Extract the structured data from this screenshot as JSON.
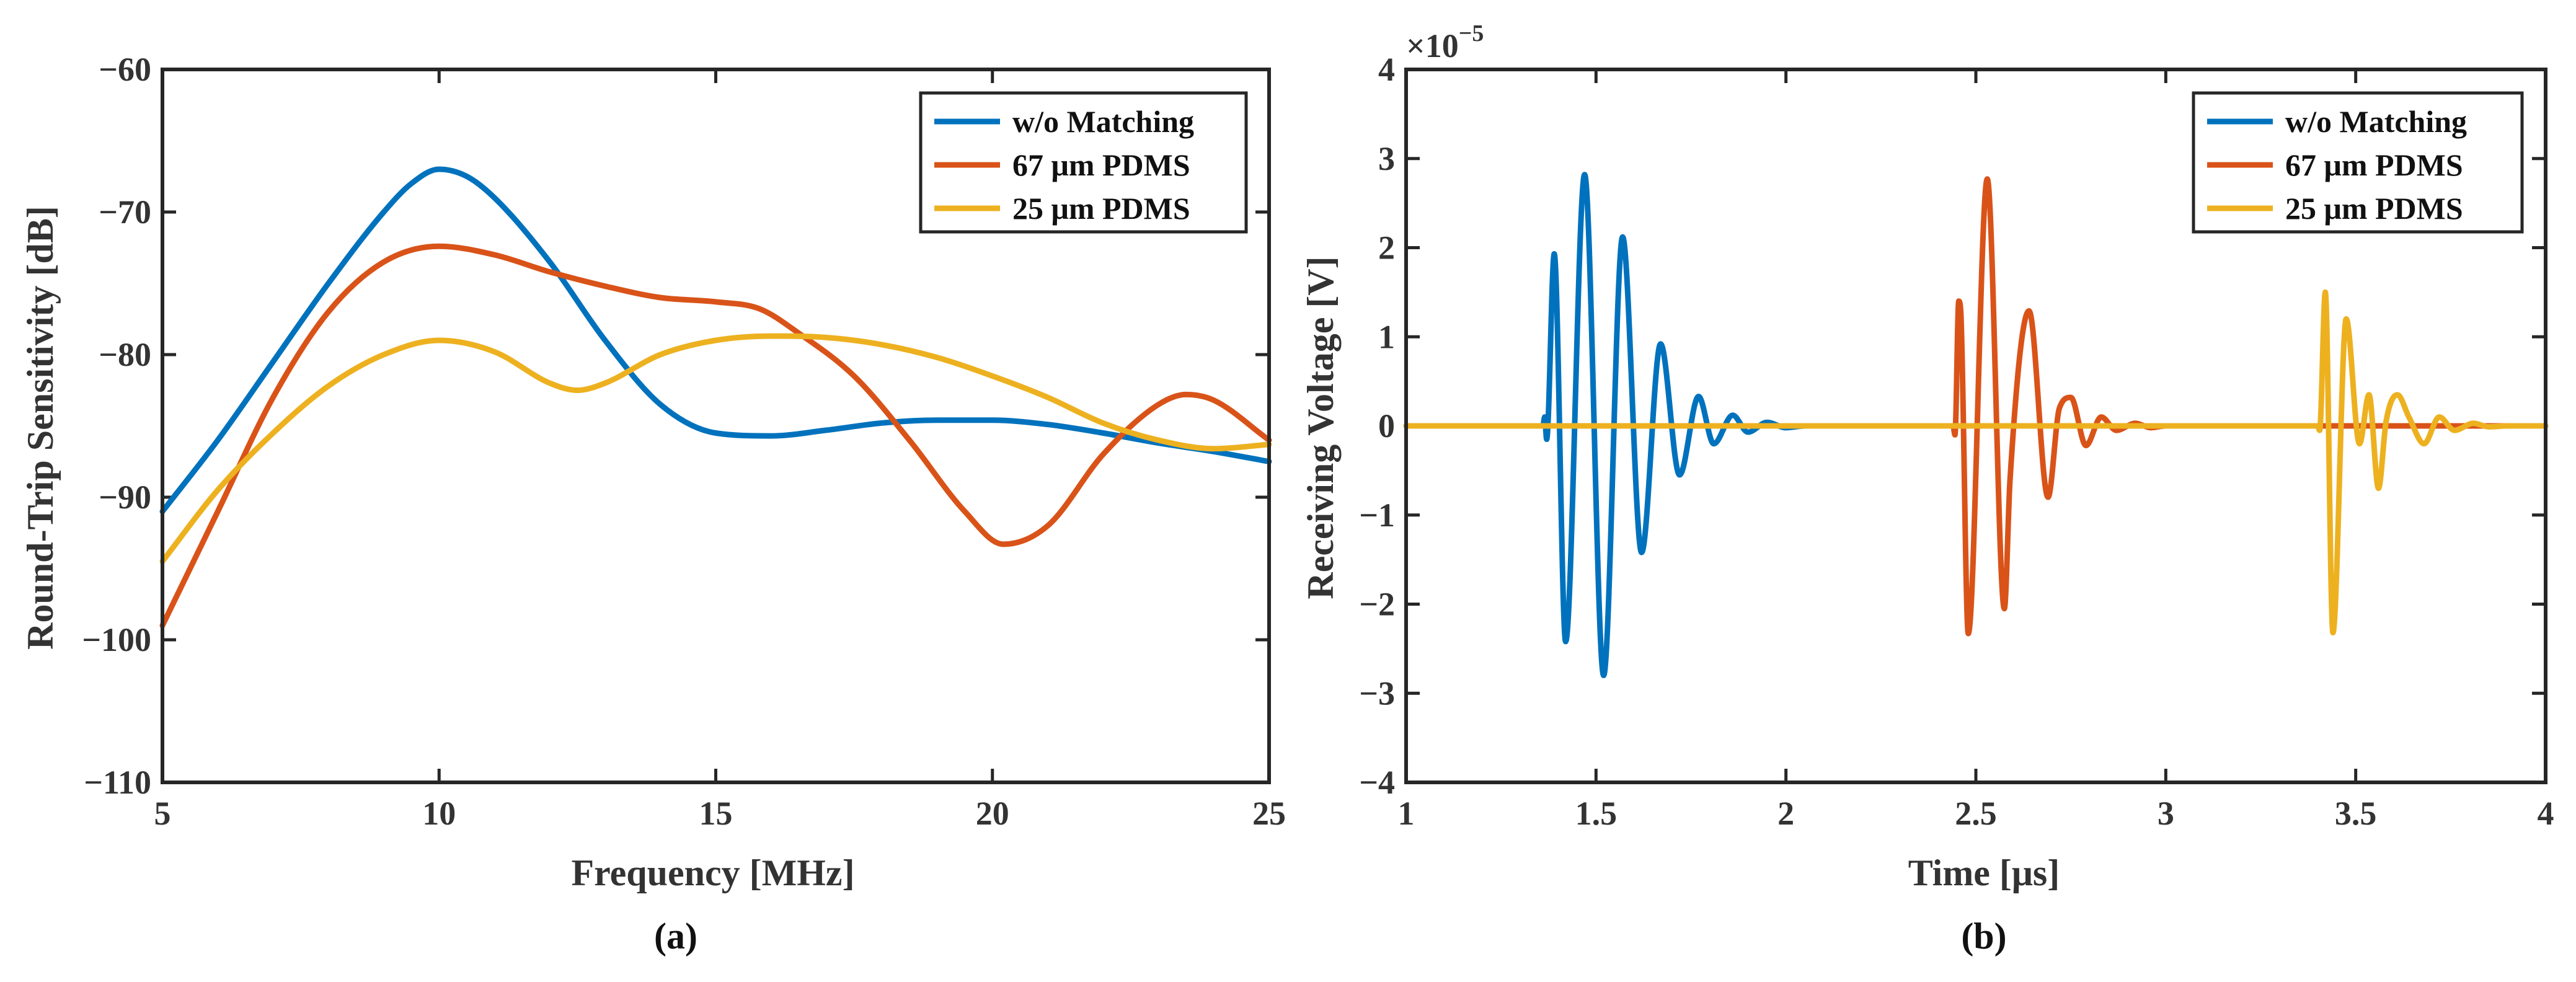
{
  "chart_data": [
    {
      "type": "line",
      "panel_caption": "(a)",
      "xlabel": "Frequency [MHz]",
      "ylabel": "Round-Trip Sensitivity [dB]",
      "xlim": [
        5,
        25
      ],
      "ylim": [
        -110,
        -60
      ],
      "xticks": [
        5,
        10,
        15,
        20,
        25
      ],
      "yticks": [
        -110,
        -100,
        -90,
        -80,
        -70,
        -60
      ],
      "xtick_labels": [
        "5",
        "10",
        "15",
        "20",
        "25"
      ],
      "ytick_labels": [
        "−110",
        "−100",
        "−90",
        "−80",
        "−70",
        "−60"
      ],
      "legend_position": "top-right",
      "series": [
        {
          "name": "w/o Matching",
          "color": "#0072BD",
          "x": [
            5,
            6,
            7,
            8,
            9,
            9.5,
            10,
            10.5,
            11,
            12,
            13,
            14,
            15,
            16,
            17,
            18,
            19,
            20,
            21,
            22,
            23,
            24,
            25
          ],
          "y": [
            -91,
            -86,
            -80.5,
            -75,
            -70,
            -68,
            -67,
            -67.5,
            -69,
            -73.5,
            -79,
            -83.5,
            -85.5,
            -85.7,
            -85.3,
            -84.8,
            -84.6,
            -84.6,
            -84.9,
            -85.5,
            -86.2,
            -86.8,
            -87.5
          ]
        },
        {
          "name": "67 μm PDMS",
          "color": "#D95319",
          "x": [
            5,
            6,
            7,
            8,
            9,
            10,
            11,
            12,
            13,
            14,
            15,
            15.8,
            16.5,
            17.5,
            18.5,
            19.5,
            20.2,
            21,
            22,
            23,
            23.5,
            24,
            25
          ],
          "y": [
            -99,
            -91,
            -83,
            -77,
            -73.5,
            -72.4,
            -73,
            -74.2,
            -75.2,
            -76,
            -76.3,
            -76.8,
            -78.5,
            -81.5,
            -86,
            -91,
            -93.3,
            -92,
            -87,
            -83.5,
            -82.8,
            -83.2,
            -86
          ]
        },
        {
          "name": "25 μm PDMS",
          "color": "#EDB120",
          "x": [
            5,
            6,
            7,
            8,
            9,
            10,
            11,
            12,
            12.5,
            13,
            14,
            15,
            16,
            17,
            18,
            19,
            20,
            21,
            22,
            23,
            24,
            25
          ],
          "y": [
            -94.5,
            -89.5,
            -85.5,
            -82.2,
            -80,
            -79,
            -79.8,
            -82,
            -82.5,
            -82,
            -80,
            -79,
            -78.7,
            -78.8,
            -79.3,
            -80.2,
            -81.5,
            -83,
            -84.8,
            -86,
            -86.6,
            -86.3
          ]
        }
      ]
    },
    {
      "type": "line",
      "panel_caption": "(b)",
      "xlabel": "Time [μs]",
      "ylabel": "Receiving Voltage [V]",
      "y_multiplier_base": "×10",
      "y_multiplier_exp": "−5",
      "xlim": [
        1,
        4
      ],
      "ylim": [
        -4,
        4
      ],
      "xticks": [
        1,
        1.5,
        2,
        2.5,
        3,
        3.5,
        4
      ],
      "yticks": [
        -4,
        -3,
        -2,
        -1,
        0,
        1,
        2,
        3,
        4
      ],
      "xtick_labels": [
        "1",
        "1.5",
        "2",
        "2.5",
        "3",
        "3.5",
        "4"
      ],
      "ytick_labels": [
        "−4",
        "−3",
        "−2",
        "−1",
        "0",
        "1",
        "2",
        "3",
        "4"
      ],
      "y_units_scale": "1e-5 V",
      "legend_position": "top-right",
      "series": [
        {
          "name": "w/o Matching",
          "color": "#0072BD",
          "x": [
            1,
            1.36,
            1.365,
            1.37,
            1.39,
            1.42,
            1.47,
            1.52,
            1.57,
            1.62,
            1.67,
            1.72,
            1.77,
            1.81,
            1.86,
            1.9,
            1.95,
            2.0,
            2.05,
            4
          ],
          "y": [
            0,
            0,
            0.1,
            -0.15,
            1.93,
            -2.42,
            2.82,
            -2.8,
            2.12,
            -1.42,
            0.92,
            -0.55,
            0.33,
            -0.2,
            0.12,
            -0.07,
            0.04,
            -0.02,
            0,
            0
          ]
        },
        {
          "name": "67 μm PDMS",
          "color": "#D95319",
          "x": [
            1,
            2.44,
            2.445,
            2.455,
            2.46,
            2.48,
            2.53,
            2.575,
            2.59,
            2.64,
            2.69,
            2.72,
            2.75,
            2.79,
            2.83,
            2.87,
            2.92,
            2.96,
            3.0,
            4
          ],
          "y": [
            0,
            0,
            -0.1,
            1.4,
            1.3,
            -2.33,
            2.77,
            -2.05,
            -0.6,
            1.29,
            -0.8,
            0.2,
            0.32,
            -0.22,
            0.1,
            -0.05,
            0.03,
            -0.02,
            0,
            0
          ]
        },
        {
          "name": "25 μm PDMS",
          "color": "#EDB120",
          "x": [
            1,
            3.4,
            3.405,
            3.42,
            3.44,
            3.475,
            3.51,
            3.535,
            3.56,
            3.58,
            3.61,
            3.64,
            3.68,
            3.72,
            3.76,
            3.81,
            3.85,
            3.9,
            4
          ],
          "y": [
            0,
            0,
            -0.05,
            1.5,
            -2.32,
            1.2,
            -0.2,
            0.35,
            -0.7,
            0.05,
            0.35,
            0.1,
            -0.2,
            0.1,
            -0.05,
            0.03,
            -0.01,
            0,
            0
          ]
        }
      ]
    }
  ]
}
